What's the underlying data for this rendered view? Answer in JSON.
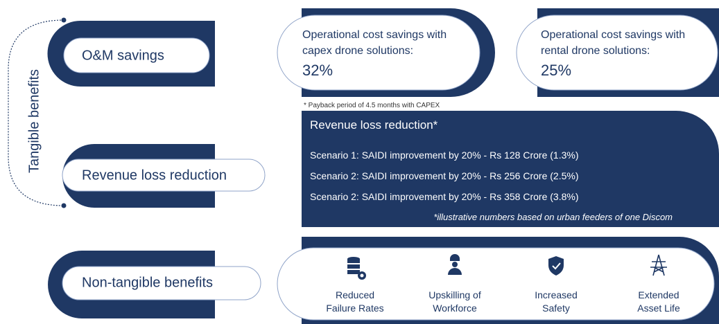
{
  "side_label": "Tangible benefits",
  "rows": [
    "O&M savings",
    "Revenue loss reduction",
    "Non-tangible benefits"
  ],
  "om_savings": {
    "cards": [
      {
        "lines": [
          "Operational cost savings with",
          "capex drone solutions:"
        ],
        "value": "32%"
      },
      {
        "lines": [
          "Operational cost savings with",
          "rental drone solutions:"
        ],
        "value": "25%"
      }
    ],
    "footnote": "* Payback period of 4.5 months with CAPEX"
  },
  "revenue": {
    "title": "Revenue loss reduction*",
    "scenarios": [
      "Scenario 1: SAIDI improvement by 20% - Rs 128 Crore (1.3%)",
      "Scenario 2: SAIDI improvement by 20% - Rs 256 Crore (2.5%)",
      "Scenario 2: SAIDI improvement by 20% - Rs 358 Crore (3.8%)"
    ],
    "note": "*illustrative numbers based on urban feeders of one Discom"
  },
  "non_tangible": {
    "items": [
      [
        "Reduced",
        "Failure Rates"
      ],
      [
        "Upskilling of",
        "Workforce"
      ],
      [
        "Increased",
        "Safety"
      ],
      [
        "Extended",
        "Asset Life"
      ]
    ]
  }
}
